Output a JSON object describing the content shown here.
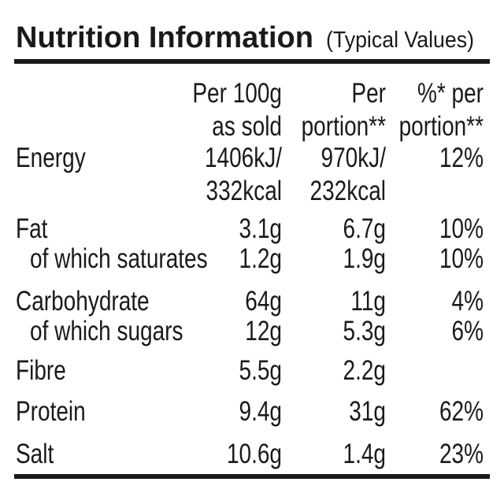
{
  "header": {
    "title": "Nutrition Information",
    "subtitle": "(Typical Values)"
  },
  "table": {
    "columns": [
      [
        "Per 100g",
        "as sold"
      ],
      [
        "Per",
        "portion**"
      ],
      [
        "%* per",
        "portion**"
      ]
    ],
    "rows": [
      {
        "label": "Energy",
        "cells": [
          [
            "1406kJ/",
            "332kcal"
          ],
          [
            "970kJ/",
            "232kcal"
          ],
          [
            "12%"
          ]
        ]
      },
      {
        "label": "Fat",
        "cells": [
          [
            "3.1g"
          ],
          [
            "6.7g"
          ],
          [
            "10%"
          ]
        ],
        "subrow": {
          "label": "of which saturates",
          "cells": [
            [
              "1.2g"
            ],
            [
              "1.9g"
            ],
            [
              "10%"
            ]
          ]
        }
      },
      {
        "label": "Carbohydrate",
        "cells": [
          [
            "64g"
          ],
          [
            "11g"
          ],
          [
            "4%"
          ]
        ],
        "subrow": {
          "label": "of which sugars",
          "cells": [
            [
              "12g"
            ],
            [
              "5.3g"
            ],
            [
              "6%"
            ]
          ]
        }
      },
      {
        "label": "Fibre",
        "cells": [
          [
            "5.5g"
          ],
          [
            "2.2g"
          ]
        ]
      },
      {
        "label": "Protein",
        "cells": [
          [
            "9.4g"
          ],
          [
            "31g"
          ],
          [
            "62%"
          ]
        ]
      },
      {
        "label": "Salt",
        "cells": [
          [
            "10.6g"
          ],
          [
            "1.4g"
          ],
          [
            "23%"
          ]
        ]
      }
    ]
  }
}
